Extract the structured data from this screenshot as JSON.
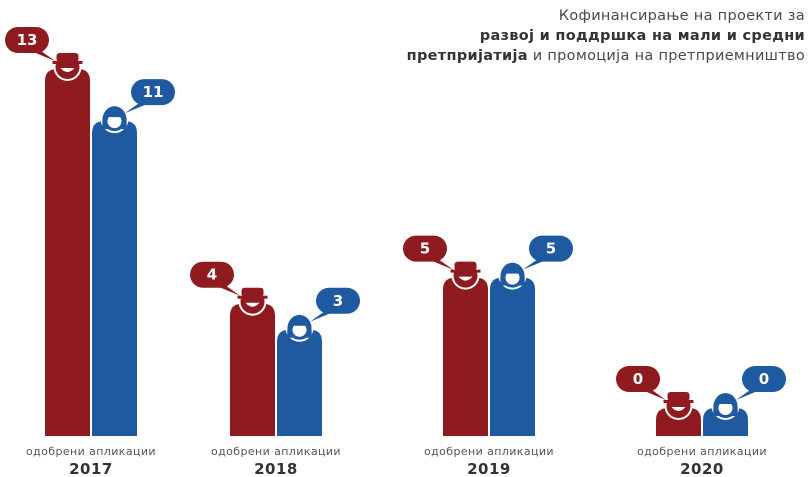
{
  "title": {
    "line1": "Кофинансирање на проекти за",
    "line2": "развој и поддршка на мали и средни",
    "line3_bold": "претпријатија",
    "line3_rest": " и промоција на претприемништво"
  },
  "chart_data": {
    "type": "bar",
    "title": "Кофинансирање на проекти за развој и поддршка на мали и средни претпријатија и промоција на претприемништво",
    "categories": [
      "2017",
      "2018",
      "2019",
      "2020"
    ],
    "category_labels": [
      "одобрени апликации",
      "одобрени апликации",
      "одобрени апликации",
      "одобрени апликации"
    ],
    "series": [
      {
        "values": [
          13,
          4,
          5,
          0
        ],
        "color": "#8f1a1f",
        "icon": "male-person-icon"
      },
      {
        "values": [
          11,
          3,
          5,
          0
        ],
        "color": "#1f5aa0",
        "icon": "female-person-icon"
      }
    ],
    "ylim": [
      0,
      13
    ],
    "grid": false,
    "legend": "none",
    "data_labels": true
  }
}
